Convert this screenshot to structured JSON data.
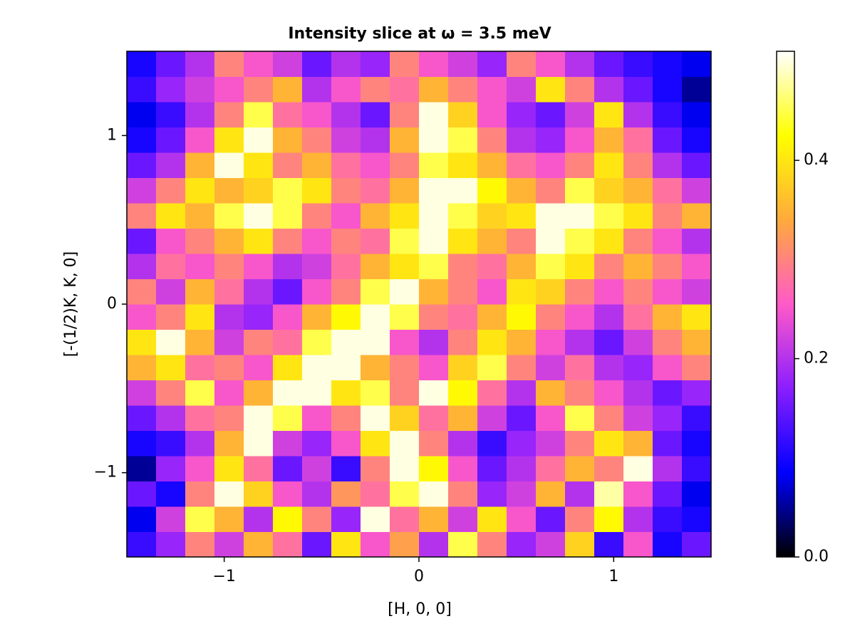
{
  "chart_data": {
    "type": "heatmap",
    "title": "Intensity slice at ω = 3.5 meV",
    "x_label": "[H, 0, 0]",
    "y_label": "[-(1/2)K, K, 0]",
    "xlim": [
      -1.5,
      1.5
    ],
    "ylim": [
      -1.5,
      1.5
    ],
    "xticks": [
      {
        "value": -1,
        "label": "−1"
      },
      0,
      1
    ],
    "yticks": [
      {
        "value": -1,
        "label": "−1"
      },
      0,
      1
    ],
    "x": [
      -1.425,
      -1.275,
      -1.125,
      -0.975,
      -0.825,
      -0.675,
      -0.525,
      -0.375,
      -0.225,
      -0.075,
      0.075,
      0.225,
      0.375,
      0.525,
      0.675,
      0.825,
      0.975,
      1.125,
      1.275,
      1.425
    ],
    "y": [
      -1.425,
      -1.275,
      -1.125,
      -0.975,
      -0.825,
      -0.675,
      -0.525,
      -0.375,
      -0.225,
      -0.075,
      0.075,
      0.225,
      0.375,
      0.525,
      0.675,
      0.825,
      0.975,
      1.125,
      1.275,
      1.425
    ],
    "z": [
      [
        0.12,
        0.18,
        0.3,
        0.22,
        0.35,
        0.28,
        0.15,
        0.4,
        0.25,
        0.33,
        0.2,
        0.45,
        0.3,
        0.18,
        0.22,
        0.38,
        0.12,
        0.25,
        0.1,
        0.15
      ],
      [
        0.08,
        0.22,
        0.45,
        0.35,
        0.2,
        0.42,
        0.3,
        0.18,
        0.5,
        0.28,
        0.35,
        0.22,
        0.4,
        0.25,
        0.15,
        0.3,
        0.42,
        0.2,
        0.12,
        0.1
      ],
      [
        0.15,
        0.1,
        0.3,
        0.5,
        0.38,
        0.25,
        0.2,
        0.32,
        0.28,
        0.45,
        0.5,
        0.3,
        0.18,
        0.22,
        0.35,
        0.2,
        0.48,
        0.25,
        0.15,
        0.08
      ],
      [
        0.05,
        0.18,
        0.25,
        0.4,
        0.28,
        0.15,
        0.22,
        0.12,
        0.3,
        0.5,
        0.42,
        0.25,
        0.15,
        0.2,
        0.28,
        0.35,
        0.3,
        0.5,
        0.2,
        0.12
      ],
      [
        0.1,
        0.12,
        0.2,
        0.35,
        0.5,
        0.22,
        0.18,
        0.25,
        0.4,
        0.5,
        0.3,
        0.2,
        0.12,
        0.18,
        0.22,
        0.3,
        0.4,
        0.35,
        0.15,
        0.1
      ],
      [
        0.15,
        0.2,
        0.28,
        0.3,
        0.5,
        0.45,
        0.25,
        0.3,
        0.5,
        0.38,
        0.28,
        0.35,
        0.22,
        0.15,
        0.25,
        0.45,
        0.3,
        0.22,
        0.18,
        0.12
      ],
      [
        0.22,
        0.3,
        0.45,
        0.25,
        0.35,
        0.5,
        0.5,
        0.4,
        0.45,
        0.3,
        0.5,
        0.42,
        0.28,
        0.2,
        0.35,
        0.3,
        0.25,
        0.2,
        0.15,
        0.18
      ],
      [
        0.35,
        0.4,
        0.28,
        0.3,
        0.25,
        0.4,
        0.5,
        0.5,
        0.35,
        0.3,
        0.25,
        0.38,
        0.45,
        0.3,
        0.22,
        0.28,
        0.2,
        0.18,
        0.25,
        0.3
      ],
      [
        0.4,
        0.5,
        0.35,
        0.22,
        0.3,
        0.28,
        0.45,
        0.5,
        0.5,
        0.25,
        0.2,
        0.3,
        0.4,
        0.35,
        0.25,
        0.2,
        0.15,
        0.22,
        0.3,
        0.35
      ],
      [
        0.25,
        0.3,
        0.4,
        0.2,
        0.18,
        0.25,
        0.35,
        0.42,
        0.5,
        0.45,
        0.3,
        0.28,
        0.35,
        0.42,
        0.3,
        0.25,
        0.2,
        0.28,
        0.35,
        0.4
      ],
      [
        0.3,
        0.22,
        0.35,
        0.28,
        0.2,
        0.15,
        0.25,
        0.3,
        0.45,
        0.5,
        0.35,
        0.3,
        0.25,
        0.4,
        0.38,
        0.3,
        0.25,
        0.3,
        0.25,
        0.22
      ],
      [
        0.2,
        0.28,
        0.25,
        0.3,
        0.25,
        0.2,
        0.22,
        0.28,
        0.35,
        0.4,
        0.45,
        0.3,
        0.28,
        0.35,
        0.45,
        0.4,
        0.3,
        0.35,
        0.3,
        0.25
      ],
      [
        0.15,
        0.25,
        0.3,
        0.35,
        0.4,
        0.3,
        0.25,
        0.3,
        0.28,
        0.45,
        0.5,
        0.4,
        0.35,
        0.3,
        0.5,
        0.45,
        0.4,
        0.3,
        0.25,
        0.2
      ],
      [
        0.3,
        0.4,
        0.35,
        0.45,
        0.5,
        0.45,
        0.3,
        0.25,
        0.35,
        0.4,
        0.5,
        0.45,
        0.38,
        0.4,
        0.5,
        0.5,
        0.45,
        0.4,
        0.3,
        0.35
      ],
      [
        0.22,
        0.3,
        0.4,
        0.35,
        0.38,
        0.45,
        0.4,
        0.3,
        0.28,
        0.35,
        0.5,
        0.5,
        0.42,
        0.35,
        0.3,
        0.45,
        0.38,
        0.35,
        0.28,
        0.22
      ],
      [
        0.15,
        0.2,
        0.35,
        0.5,
        0.4,
        0.3,
        0.35,
        0.28,
        0.25,
        0.3,
        0.45,
        0.4,
        0.35,
        0.28,
        0.25,
        0.3,
        0.4,
        0.3,
        0.2,
        0.15
      ],
      [
        0.1,
        0.15,
        0.25,
        0.4,
        0.5,
        0.35,
        0.3,
        0.22,
        0.2,
        0.35,
        0.5,
        0.45,
        0.3,
        0.2,
        0.18,
        0.25,
        0.35,
        0.28,
        0.15,
        0.1
      ],
      [
        0.08,
        0.12,
        0.2,
        0.3,
        0.45,
        0.28,
        0.25,
        0.2,
        0.15,
        0.3,
        0.5,
        0.38,
        0.25,
        0.18,
        0.15,
        0.22,
        0.4,
        0.2,
        0.12,
        0.08
      ],
      [
        0.12,
        0.18,
        0.22,
        0.25,
        0.3,
        0.35,
        0.2,
        0.25,
        0.3,
        0.28,
        0.35,
        0.3,
        0.25,
        0.22,
        0.4,
        0.3,
        0.2,
        0.15,
        0.1,
        0.05
      ],
      [
        0.1,
        0.15,
        0.2,
        0.3,
        0.25,
        0.22,
        0.15,
        0.2,
        0.18,
        0.3,
        0.25,
        0.22,
        0.18,
        0.3,
        0.25,
        0.2,
        0.15,
        0.12,
        0.1,
        0.08
      ]
    ],
    "clim": [
      0,
      0.51
    ],
    "cticks": [
      {
        "value": 0,
        "label": "0.0"
      },
      0.2,
      0.4
    ],
    "colormap": [
      "#000000",
      "#0000ff",
      "#8a1eff",
      "#ff5ac8",
      "#ffaa3c",
      "#ffff00",
      "#ffffff"
    ]
  }
}
